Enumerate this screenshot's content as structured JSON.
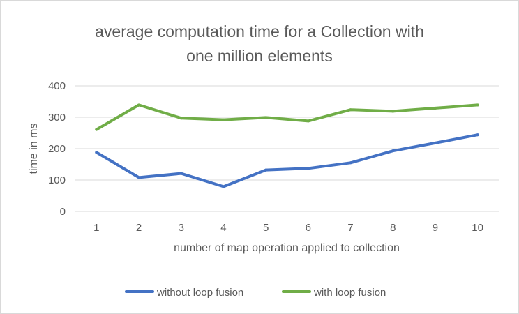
{
  "chart_data": {
    "type": "line",
    "title_lines": [
      "average computation time for a Collection with",
      "one million elements"
    ],
    "xlabel": "number of map operation applied to collection",
    "ylabel": "time in ms",
    "categories": [
      "1",
      "2",
      "3",
      "4",
      "5",
      "6",
      "7",
      "8",
      "9",
      "10"
    ],
    "ylim": [
      0,
      400
    ],
    "yticks": [
      "0",
      "100",
      "200",
      "300",
      "400"
    ],
    "grid": true,
    "legend_position": "bottom",
    "series": [
      {
        "name": "without loop fusion",
        "color": "#4472C4",
        "values": [
          188,
          108,
          121,
          79,
          132,
          137,
          155,
          193,
          218,
          244
        ]
      },
      {
        "name": "with loop fusion",
        "color": "#70AD47",
        "values": [
          261,
          339,
          297,
          292,
          299,
          288,
          324,
          319,
          329,
          339
        ]
      }
    ]
  }
}
